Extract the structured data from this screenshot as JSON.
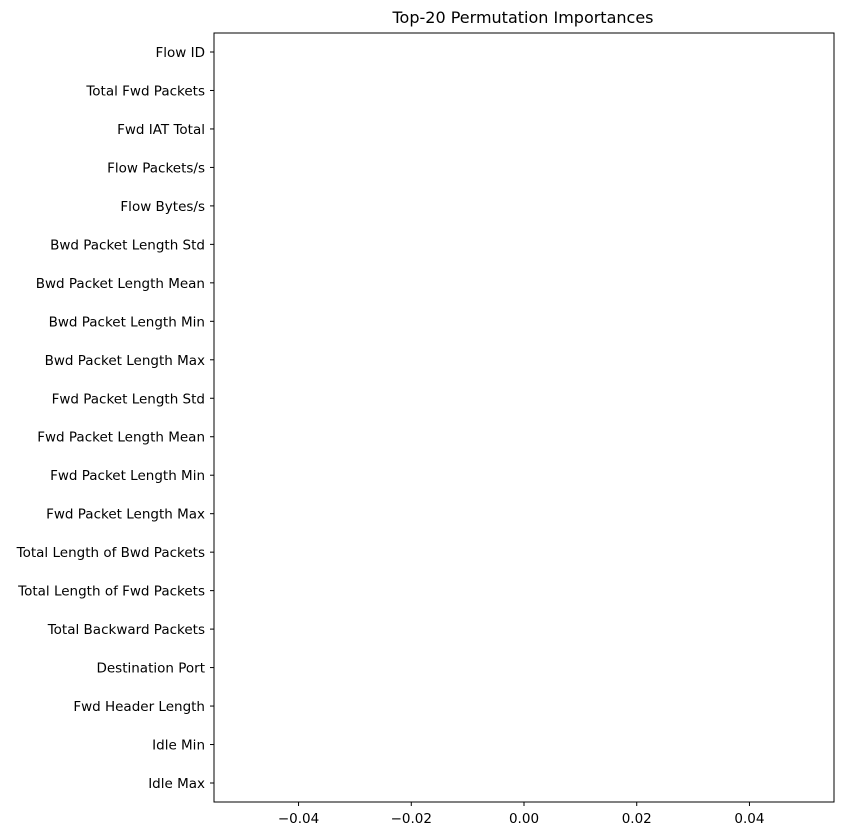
{
  "chart_data": {
    "type": "bar",
    "orientation": "horizontal",
    "title": "Top-20 Permutation Importances",
    "xlabel": "",
    "ylabel": "",
    "categories": [
      "Flow ID",
      "Total Fwd Packets",
      "Fwd IAT Total",
      "Flow Packets/s",
      "Flow Bytes/s",
      "Bwd Packet Length Std",
      "Bwd Packet Length Mean",
      "Bwd Packet Length Min",
      "Bwd Packet Length Max",
      "Fwd Packet Length Std",
      "Fwd Packet Length Mean",
      "Fwd Packet Length Min",
      "Fwd Packet Length Max",
      "Total Length of Bwd Packets",
      "Total Length of Fwd Packets",
      "Total Backward Packets",
      "Destination Port",
      "Fwd Header Length",
      "Idle Min",
      "Idle Max"
    ],
    "values": [
      0,
      0,
      0,
      0,
      0,
      0,
      0,
      0,
      0,
      0,
      0,
      0,
      0,
      0,
      0,
      0,
      0,
      0,
      0,
      0
    ],
    "xlim": [
      -0.055,
      0.055
    ],
    "xticks": [
      -0.04,
      -0.02,
      0.0,
      0.02,
      0.04
    ],
    "xtick_labels": [
      "−0.04",
      "−0.02",
      "0.00",
      "0.02",
      "0.04"
    ],
    "grid": false,
    "bar_color": "#1f77b4"
  }
}
